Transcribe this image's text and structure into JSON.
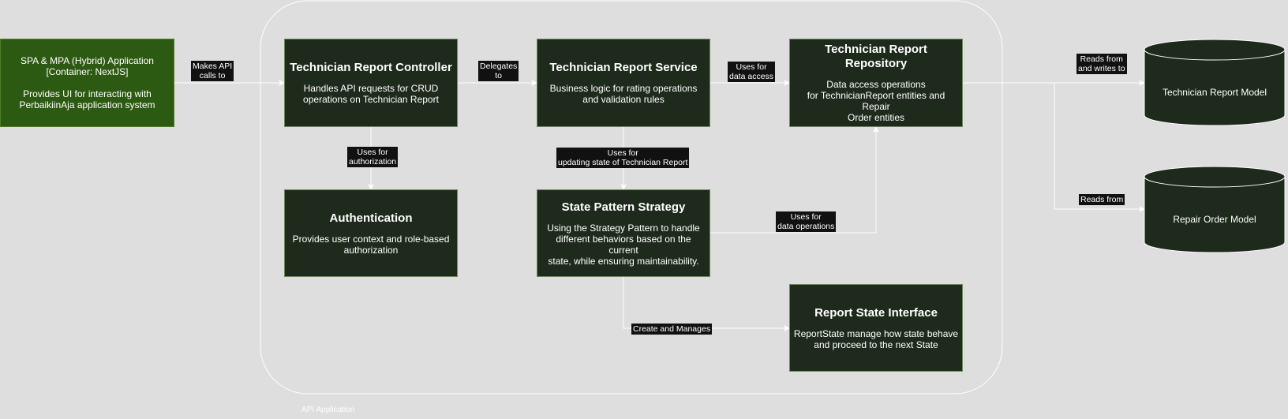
{
  "boundary": {
    "label": "API  Application"
  },
  "nodes": {
    "spa": {
      "title": "",
      "desc": "SPA & MPA (Hybrid) Application\n[Container: NextJS]\n\nProvides UI for interacting with\nPerbaikiinAja application system"
    },
    "controller": {
      "title": "Technician Report Controller",
      "desc": "Handles API requests for CRUD\noperations on Technician Report"
    },
    "service": {
      "title": "Technician Report Service",
      "desc": "Business logic for rating operations\nand validation rules"
    },
    "repository": {
      "title": "Technician Report Repository",
      "desc": "Data access operations\nfor TechnicianReport entities and Repair\nOrder entities"
    },
    "auth": {
      "title": "Authentication",
      "desc": "Provides user context and role-based\nauthorization"
    },
    "strategy": {
      "title": "State Pattern Strategy",
      "desc": "Using the Strategy Pattern to handle\ndifferent behaviors based on the current\nstate, while ensuring maintainability."
    },
    "state_interface": {
      "title": "Report State Interface",
      "desc": "ReportState manage how state behave\nand proceed to the next State"
    }
  },
  "databases": {
    "tech_model": "Technician Report Model",
    "repair_model": "Repair Order Model"
  },
  "edges": {
    "spa_controller": "Makes API\ncalls to",
    "controller_service": "Delegates\nto",
    "service_repository": "Uses for\ndata access",
    "controller_auth": "Uses for\nauthorization",
    "service_strategy": "Uses for\nupdating state of Technician Report",
    "strategy_repository": "Uses for\ndata operations",
    "strategy_state": "Create and Manages",
    "repo_tech_model": "Reads from\nand writes to",
    "repo_repair_model": "Reads from"
  },
  "colors": {
    "canvas": "#dedede",
    "component_fill": "#1e2b1c",
    "spa_fill": "#2d5a12",
    "line": "#ffffff"
  }
}
